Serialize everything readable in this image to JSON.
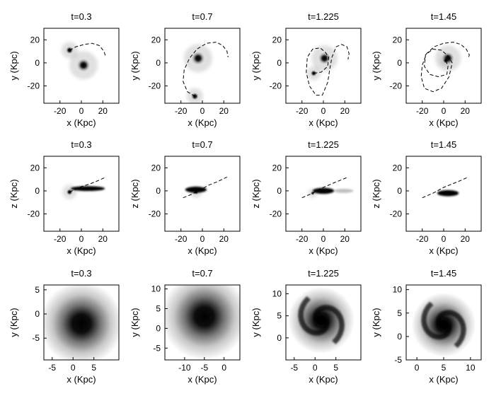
{
  "chart_data": [
    {
      "type": "scatter",
      "title": "t=0.3",
      "xlabel": "x (Kpc)",
      "ylabel": "y (Kpc)",
      "xlim": [
        -35,
        35
      ],
      "ylim": [
        -35,
        30
      ],
      "xticks": [
        -20,
        0,
        20
      ],
      "yticks": [
        20,
        0,
        -20
      ],
      "xtick_labels": [
        "-20",
        "0",
        "20"
      ],
      "ytick_labels": [
        "20",
        "0",
        "-20"
      ],
      "blobs": [
        {
          "x": 2,
          "y": -2,
          "size": 6,
          "darkness": 1.0
        },
        {
          "x": -11,
          "y": 11,
          "size": 3.5,
          "darkness": 1.0
        }
      ],
      "orbit": [
        [
          -11,
          11
        ],
        [
          -5,
          14
        ],
        [
          3,
          16
        ],
        [
          10,
          17
        ],
        [
          17,
          15
        ],
        [
          21,
          10
        ],
        [
          23,
          5
        ]
      ]
    },
    {
      "type": "scatter",
      "title": "t=0.7",
      "xlabel": "x (Kpc)",
      "ylabel": "y (Kpc)",
      "xlim": [
        -35,
        35
      ],
      "ylim": [
        -35,
        30
      ],
      "xticks": [
        -20,
        0,
        20
      ],
      "yticks": [
        20,
        0,
        -20
      ],
      "xtick_labels": [
        "-20",
        "0",
        "20"
      ],
      "ytick_labels": [
        "20",
        "0",
        "-20"
      ],
      "blobs": [
        {
          "x": -4,
          "y": 4,
          "size": 6,
          "darkness": 1.0
        },
        {
          "x": -7,
          "y": -29,
          "size": 3.5,
          "darkness": 1.0
        }
      ],
      "orbit": [
        [
          -7,
          -29
        ],
        [
          -14,
          -25
        ],
        [
          -18,
          -16
        ],
        [
          -17,
          -6
        ],
        [
          -12,
          4
        ],
        [
          -5,
          12
        ],
        [
          4,
          17
        ],
        [
          13,
          18
        ],
        [
          19,
          15
        ],
        [
          23,
          10
        ],
        [
          24,
          5
        ]
      ]
    },
    {
      "type": "scatter",
      "title": "t=1.225",
      "xlabel": "x (Kpc)",
      "ylabel": "y (Kpc)",
      "xlim": [
        -35,
        35
      ],
      "ylim": [
        -35,
        30
      ],
      "xticks": [
        -20,
        0,
        20
      ],
      "yticks": [
        20,
        0,
        -20
      ],
      "xtick_labels": [
        "-20",
        "0",
        "20"
      ],
      "ytick_labels": [
        "20",
        "0",
        "-20"
      ],
      "blobs": [
        {
          "x": 1,
          "y": 4,
          "size": 5.5,
          "darkness": 1.0
        },
        {
          "x": -9,
          "y": -9,
          "size": 3,
          "darkness": 1.0
        }
      ],
      "orbit": [
        [
          -9,
          -9
        ],
        [
          -2,
          -8
        ],
        [
          4,
          -3
        ],
        [
          5,
          5
        ],
        [
          2,
          9
        ],
        [
          -3,
          13
        ],
        [
          -10,
          12
        ],
        [
          -15,
          5
        ],
        [
          -16,
          -8
        ],
        [
          -13,
          -20
        ],
        [
          -7,
          -28
        ],
        [
          -1,
          -28
        ],
        [
          4,
          -17
        ],
        [
          6,
          -5
        ],
        [
          8,
          5
        ],
        [
          12,
          14
        ],
        [
          17,
          16
        ],
        [
          22,
          14
        ],
        [
          24,
          8
        ],
        [
          23,
          3
        ]
      ]
    },
    {
      "type": "scatter",
      "title": "t=1.45",
      "xlabel": "x (Kpc)",
      "ylabel": "y (Kpc)",
      "xlim": [
        -35,
        35
      ],
      "ylim": [
        -35,
        30
      ],
      "xticks": [
        -20,
        0,
        20
      ],
      "yticks": [
        20,
        0,
        -20
      ],
      "xtick_labels": [
        "-20",
        "0",
        "20"
      ],
      "ytick_labels": [
        "20",
        "0",
        "-20"
      ],
      "blobs": [
        {
          "x": 4,
          "y": 4,
          "size": 5.5,
          "darkness": 1.0
        },
        {
          "x": 2,
          "y": 2,
          "size": 2.5,
          "darkness": 1.0
        }
      ],
      "orbit": [
        [
          2,
          2
        ],
        [
          4,
          -3
        ],
        [
          3,
          -10
        ],
        [
          -5,
          -12
        ],
        [
          -13,
          -10
        ],
        [
          -18,
          -3
        ],
        [
          -17,
          7
        ],
        [
          -10,
          12
        ],
        [
          -2,
          11
        ],
        [
          4,
          6
        ],
        [
          8,
          0
        ],
        [
          5,
          -12
        ],
        [
          -2,
          -22
        ],
        [
          -10,
          -25
        ],
        [
          -18,
          -22
        ],
        [
          -21,
          -12
        ],
        [
          -20,
          -2
        ],
        [
          -16,
          8
        ],
        [
          -9,
          14
        ],
        [
          0,
          17
        ],
        [
          9,
          18
        ],
        [
          16,
          16
        ],
        [
          21,
          12
        ],
        [
          24,
          7
        ],
        [
          23,
          4
        ]
      ]
    },
    {
      "type": "scatter",
      "title": "t=0.3",
      "xlabel": "x (Kpc)",
      "ylabel": "z (Kpc)",
      "xlim": [
        -35,
        35
      ],
      "ylim": [
        -35,
        30
      ],
      "xticks": [
        -20,
        0,
        20
      ],
      "yticks": [
        20,
        0,
        -20
      ],
      "xtick_labels": [
        "-20",
        "0",
        "20"
      ],
      "ytick_labels": [
        "20",
        "0",
        "-20"
      ],
      "disks": [
        {
          "x1": -10,
          "x2": 22,
          "y": 2,
          "thickness": 1.5,
          "darkness": 1.0
        }
      ],
      "blobs": [
        {
          "x": -11,
          "y": -1,
          "size": 3,
          "darkness": 1.0
        }
      ],
      "orbit": [
        [
          -11,
          -1
        ],
        [
          -2,
          3
        ],
        [
          8,
          6
        ],
        [
          16,
          9
        ],
        [
          23,
          12
        ]
      ]
    },
    {
      "type": "scatter",
      "title": "t=0.7",
      "xlabel": "x (Kpc)",
      "ylabel": "z (Kpc)",
      "xlim": [
        -35,
        35
      ],
      "ylim": [
        -35,
        30
      ],
      "xticks": [
        -20,
        0,
        20
      ],
      "yticks": [
        20,
        0,
        -20
      ],
      "xtick_labels": [
        "-20",
        "0",
        "20"
      ],
      "ytick_labels": [
        "20",
        "0",
        "-20"
      ],
      "disks": [
        {
          "x1": -16,
          "x2": 4,
          "y": 1,
          "thickness": 2,
          "darkness": 1.0
        }
      ],
      "blobs": [
        {
          "x": -6,
          "y": -1,
          "size": 2.5,
          "darkness": 1.0
        }
      ],
      "orbit": [
        [
          -18,
          -6
        ],
        [
          -10,
          -3
        ],
        [
          -2,
          1
        ],
        [
          6,
          5
        ],
        [
          14,
          8
        ],
        [
          23,
          12
        ]
      ]
    },
    {
      "type": "scatter",
      "title": "t=1.225",
      "xlabel": "x (Kpc)",
      "ylabel": "z (Kpc)",
      "xlim": [
        -35,
        35
      ],
      "ylim": [
        -35,
        30
      ],
      "xticks": [
        -20,
        0,
        20
      ],
      "yticks": [
        20,
        0,
        -20
      ],
      "xtick_labels": [
        "-20",
        "0",
        "20"
      ],
      "ytick_labels": [
        "20",
        "0",
        "-20"
      ],
      "disks": [
        {
          "x1": -10,
          "x2": 10,
          "y": 0,
          "thickness": 2,
          "darkness": 1.0
        },
        {
          "x1": 10,
          "x2": 28,
          "y": 0,
          "thickness": 1.2,
          "darkness": 0.25
        }
      ],
      "blobs": [
        {
          "x": -10,
          "y": -2,
          "size": 2,
          "darkness": 0.9
        }
      ],
      "orbit": [
        [
          -20,
          -6
        ],
        [
          -10,
          -2
        ],
        [
          0,
          3
        ],
        [
          10,
          7
        ],
        [
          18,
          10
        ],
        [
          23,
          12
        ]
      ]
    },
    {
      "type": "scatter",
      "title": "t=1.45",
      "xlabel": "x (Kpc)",
      "ylabel": "z (Kpc)",
      "xlim": [
        -35,
        35
      ],
      "ylim": [
        -35,
        30
      ],
      "xticks": [
        -20,
        0,
        20
      ],
      "yticks": [
        20,
        0,
        -20
      ],
      "xtick_labels": [
        "-20",
        "0",
        "20"
      ],
      "ytick_labels": [
        "20",
        "0",
        "-20"
      ],
      "disks": [
        {
          "x1": -6,
          "x2": 14,
          "y": -2,
          "thickness": 2,
          "darkness": 1.0
        }
      ],
      "blobs": [],
      "orbit": [
        [
          -20,
          -6
        ],
        [
          -10,
          -2
        ],
        [
          0,
          3
        ],
        [
          8,
          6
        ],
        [
          16,
          9
        ],
        [
          23,
          12
        ]
      ]
    },
    {
      "type": "heatmap",
      "title": "t=0.3",
      "xlabel": "x (Kpc)",
      "ylabel": "y (Kpc)",
      "xlim": [
        -7,
        11
      ],
      "ylim": [
        -9.5,
        6
      ],
      "xticks": [
        -5,
        0,
        5
      ],
      "yticks": [
        5,
        0,
        -5
      ],
      "xtick_labels": [
        "-5",
        "0",
        "5"
      ],
      "ytick_labels": [
        "5",
        "0",
        "-5"
      ],
      "galaxy": {
        "cx": 2,
        "cy": -2,
        "radius": 10,
        "spiral": false
      }
    },
    {
      "type": "heatmap",
      "title": "t=0.7",
      "xlabel": "x (Kpc)",
      "ylabel": "y (Kpc)",
      "xlim": [
        -15,
        4
      ],
      "ylim": [
        -8,
        11
      ],
      "xticks": [
        -10,
        -5,
        0
      ],
      "yticks": [
        10,
        5,
        0,
        -5
      ],
      "xtick_labels": [
        "-10",
        "-5",
        "0"
      ],
      "ytick_labels": [
        "10",
        "5",
        "0",
        "-5"
      ],
      "galaxy": {
        "cx": -5,
        "cy": 3,
        "radius": 11,
        "spiral": false
      }
    },
    {
      "type": "heatmap",
      "title": "t=1.225",
      "xlabel": "x (Kpc)",
      "ylabel": "y (Kpc)",
      "xlim": [
        -7,
        11
      ],
      "ylim": [
        -5,
        12
      ],
      "xticks": [
        -5,
        0,
        5
      ],
      "yticks": [
        10,
        5,
        0
      ],
      "xtick_labels": [
        "-5",
        "0",
        "5"
      ],
      "ytick_labels": [
        "10",
        "5",
        "0"
      ],
      "galaxy": {
        "cx": 1.5,
        "cy": 4,
        "radius": 8,
        "spiral": true
      }
    },
    {
      "type": "heatmap",
      "title": "t=1.45",
      "xlabel": "x (Kpc)",
      "ylabel": "y (Kpc)",
      "xlim": [
        -2,
        12
      ],
      "ylim": [
        -5,
        11
      ],
      "xticks": [
        0,
        5,
        10
      ],
      "yticks": [
        10,
        5,
        0,
        -5
      ],
      "xtick_labels": [
        "0",
        "5",
        "10"
      ],
      "ytick_labels": [
        "10",
        "5",
        "0",
        "-5"
      ],
      "galaxy": {
        "cx": 5,
        "cy": 2.5,
        "radius": 6,
        "spiral": true
      }
    }
  ]
}
